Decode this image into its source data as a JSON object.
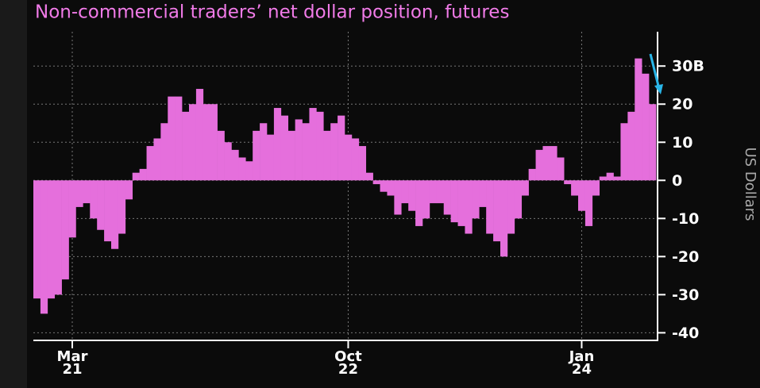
{
  "chart_data": {
    "type": "bar",
    "title": "Non-commercial traders’ net dollar position, futures",
    "y_axis_label": "US Dollars",
    "categories": [
      null,
      null,
      null,
      null,
      null,
      "Mar 21",
      null,
      null,
      null,
      null,
      null,
      null,
      null,
      null,
      null,
      null,
      null,
      null,
      null,
      null,
      null,
      null,
      null,
      null,
      null,
      null,
      null,
      null,
      null,
      null,
      null,
      null,
      null,
      null,
      null,
      null,
      null,
      null,
      null,
      null,
      null,
      null,
      null,
      null,
      "Oct 22",
      null,
      null,
      null,
      null,
      null,
      null,
      null,
      null,
      null,
      null,
      null,
      null,
      null,
      null,
      null,
      null,
      null,
      null,
      null,
      null,
      null,
      null,
      null,
      null,
      null,
      null,
      null,
      null,
      null,
      null,
      null,
      null,
      "Jan 24",
      null,
      null,
      null,
      null,
      null,
      null,
      null,
      null,
      null,
      null
    ],
    "values": [
      -31,
      -35,
      -31,
      -30,
      -26,
      -15,
      -7,
      -6,
      -10,
      -13,
      -16,
      -18,
      -14,
      -5,
      2,
      3,
      9,
      11,
      15,
      22,
      22,
      18,
      20,
      24,
      20,
      20,
      13,
      10,
      8,
      6,
      5,
      13,
      15,
      12,
      19,
      17,
      13,
      16,
      15,
      19,
      18,
      13,
      15,
      17,
      12,
      11,
      9,
      2,
      -1,
      -3,
      -4,
      -9,
      -6,
      -8,
      -12,
      -10,
      -6,
      -6,
      -9,
      -11,
      -12,
      -14,
      -10,
      -7,
      -14,
      -16,
      -20,
      -14,
      -10,
      -4,
      3,
      8,
      9,
      9,
      6,
      -1,
      -4,
      -8,
      -12,
      -4,
      1,
      2,
      1,
      15,
      18,
      32,
      28,
      20
    ],
    "color": "#e56fdc",
    "ylim": [
      -42,
      39
    ],
    "yticks": [
      -40,
      -30,
      -20,
      -10,
      0,
      10,
      20,
      {
        "value": 30,
        "label": "30B"
      }
    ],
    "grid": true
  }
}
